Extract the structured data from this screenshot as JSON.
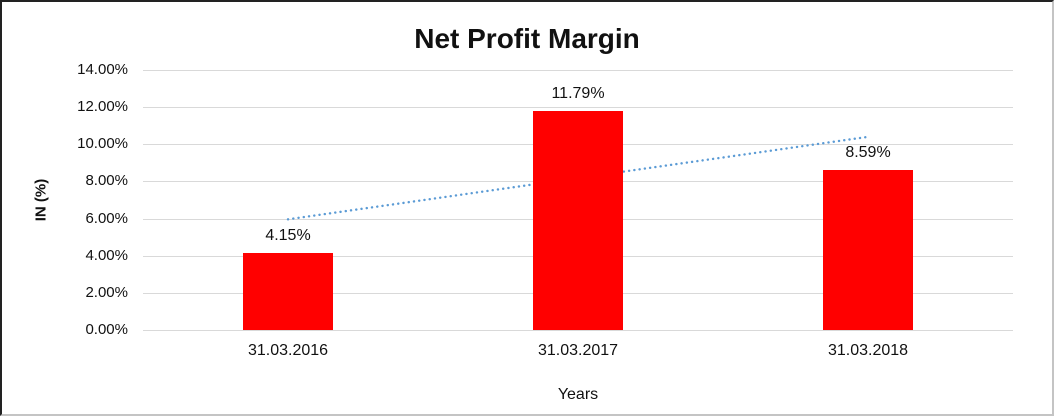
{
  "chart_data": {
    "type": "bar",
    "title": "Net Profit Margin",
    "xlabel": "Years",
    "ylabel": "IN (%)",
    "categories": [
      "31.03.2016",
      "31.03.2017",
      "31.03.2018"
    ],
    "values": [
      4.15,
      11.79,
      8.59
    ],
    "data_labels": [
      "4.15%",
      "11.79%",
      "8.59%"
    ],
    "ylim": [
      0,
      14
    ],
    "yticks": [
      {
        "value": 0,
        "label": "0.00%"
      },
      {
        "value": 2,
        "label": "2.00%"
      },
      {
        "value": 4,
        "label": "4.00%"
      },
      {
        "value": 6,
        "label": "6.00%"
      },
      {
        "value": 8,
        "label": "8.00%"
      },
      {
        "value": 10,
        "label": "10.00%"
      },
      {
        "value": 12,
        "label": "12.00%"
      },
      {
        "value": 14,
        "label": "14.00%"
      }
    ],
    "grid": true,
    "legend": "none",
    "bar_color": "#FF0000",
    "gridline_color": "#D9D9D9",
    "trendline": {
      "type": "linear",
      "style": "dotted",
      "color": "#5B9BD5",
      "start_value": 5.96,
      "end_value": 10.4
    }
  }
}
